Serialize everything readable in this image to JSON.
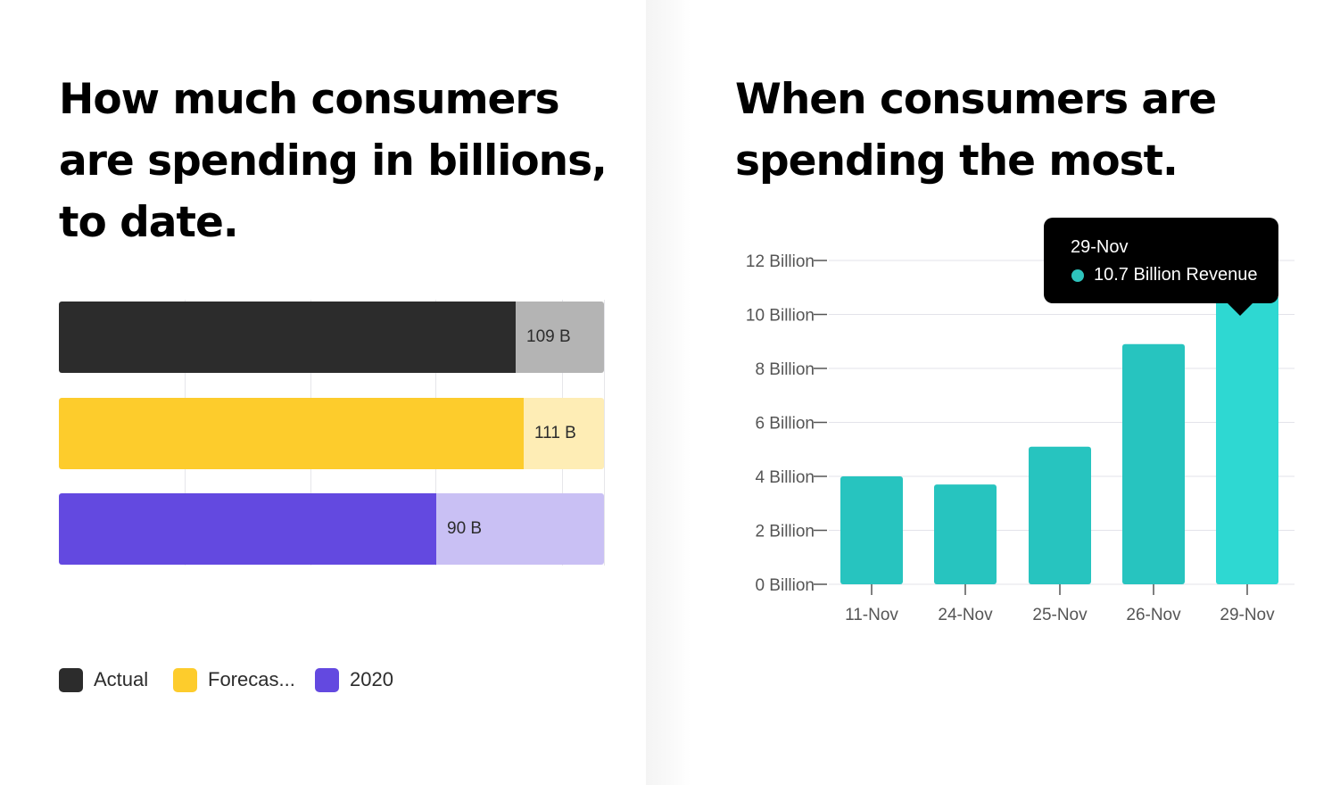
{
  "left": {
    "title_lines": [
      "How much consumers",
      "are spending in billions,",
      "to date."
    ]
  },
  "right": {
    "title_lines": [
      "When consumers are",
      "spending the most."
    ]
  },
  "legend": [
    {
      "label": "Actual",
      "color": "#2c2c2c"
    },
    {
      "label": "Forecas...",
      "color": "#fdcc2c"
    },
    {
      "label": "2020",
      "color": "#6349e0"
    }
  ],
  "tooltip": {
    "date": "29-Nov",
    "value_text": "10.7 Billion Revenue",
    "dot_color": "#2ec4bd"
  },
  "chart_data": [
    {
      "type": "bar",
      "orientation": "horizontal",
      "title": "How much consumers are spending in billions, to date.",
      "unit": "B",
      "xlim": [
        0,
        130
      ],
      "bars": [
        {
          "series": "Actual",
          "value": 109,
          "fill_fraction": 0.838,
          "label": "109 B",
          "color": "#2c2c2c",
          "track_color": "#b4b4b4"
        },
        {
          "series": "Forecas...",
          "value": 111,
          "fill_fraction": 0.853,
          "label": "111 B",
          "color": "#fdcc2c",
          "track_color": "#feedb5"
        },
        {
          "series": "2020",
          "value": 90,
          "fill_fraction": 0.692,
          "label": "90 B",
          "color": "#6349e0",
          "track_color": "#c9c0f4"
        }
      ]
    },
    {
      "type": "bar",
      "title": "When consumers are spending the most.",
      "categories": [
        "11-Nov",
        "24-Nov",
        "25-Nov",
        "26-Nov",
        "29-Nov"
      ],
      "values": [
        4.0,
        3.7,
        5.1,
        8.9,
        10.7
      ],
      "ylim": [
        0,
        12
      ],
      "yticks": [
        0,
        2,
        4,
        6,
        8,
        10,
        12
      ],
      "ytick_labels": [
        "0 Billion",
        "2 Billion",
        "4 Billion",
        "6 Billion",
        "8 Billion",
        "10 Billion",
        "12 Billion"
      ],
      "highlight_index": 4,
      "color": "#27c4bf",
      "highlight_color": "#2ed8d2",
      "grid": true
    }
  ]
}
